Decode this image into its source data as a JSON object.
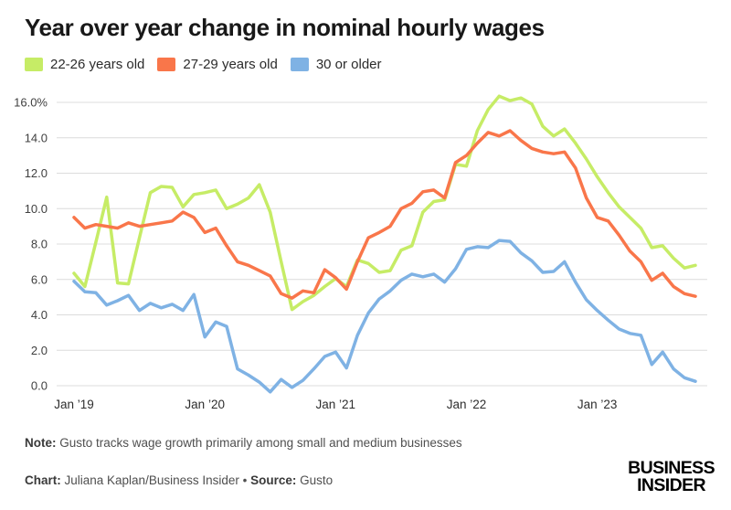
{
  "header": {
    "title": "Year over year change in nominal hourly wages"
  },
  "legend": [
    {
      "label": "22-26 years old",
      "color": "#c6ec66"
    },
    {
      "label": "27-29 years old",
      "color": "#f9764a"
    },
    {
      "label": "30 or older",
      "color": "#7fb2e4"
    }
  ],
  "chart_data": {
    "type": "line",
    "title": "Year over year change in nominal hourly wages",
    "xlabel": "",
    "ylabel": "",
    "ylim": [
      0,
      16
    ],
    "grid": "horizontal",
    "legend_position": "top-left",
    "gridline_color": "#dcdcdc",
    "axis_label_color": "#3f3f3f",
    "y_ticks": [
      {
        "value": 16,
        "label": "16.0%"
      },
      {
        "value": 14,
        "label": "14.0"
      },
      {
        "value": 12,
        "label": "12.0"
      },
      {
        "value": 10,
        "label": "10.0"
      },
      {
        "value": 8,
        "label": "8.0"
      },
      {
        "value": 6,
        "label": "6.0"
      },
      {
        "value": 4,
        "label": "4.0"
      },
      {
        "value": 2,
        "label": "2.0"
      },
      {
        "value": 0,
        "label": "0.0"
      }
    ],
    "x_ticks": [
      {
        "index": 0,
        "label": "Jan ’19"
      },
      {
        "index": 12,
        "label": "Jan ’20"
      },
      {
        "index": 24,
        "label": "Jan ’21"
      },
      {
        "index": 36,
        "label": "Jan ’22"
      },
      {
        "index": 48,
        "label": "Jan ’23"
      }
    ],
    "months": [
      "2019-01",
      "2019-02",
      "2019-03",
      "2019-04",
      "2019-05",
      "2019-06",
      "2019-07",
      "2019-08",
      "2019-09",
      "2019-10",
      "2019-11",
      "2019-12",
      "2020-01",
      "2020-02",
      "2020-03",
      "2020-04",
      "2020-05",
      "2020-06",
      "2020-07",
      "2020-08",
      "2020-09",
      "2020-10",
      "2020-11",
      "2020-12",
      "2021-01",
      "2021-02",
      "2021-03",
      "2021-04",
      "2021-05",
      "2021-06",
      "2021-07",
      "2021-08",
      "2021-09",
      "2021-10",
      "2021-11",
      "2021-12",
      "2022-01",
      "2022-02",
      "2022-03",
      "2022-04",
      "2022-05",
      "2022-06",
      "2022-07",
      "2022-08",
      "2022-09",
      "2022-10",
      "2022-11",
      "2022-12",
      "2023-01",
      "2023-02",
      "2023-03",
      "2023-04",
      "2023-05",
      "2023-06",
      "2023-07",
      "2023-08",
      "2023-09",
      "2023-10"
    ],
    "series": [
      {
        "id": "22-26",
        "name": "22-26 years old",
        "color": "#c6ec66",
        "values": [
          6.35,
          5.6,
          8.1,
          10.65,
          5.8,
          5.75,
          8.35,
          10.9,
          11.25,
          11.2,
          10.1,
          10.8,
          10.9,
          11.05,
          10.0,
          10.25,
          10.6,
          11.35,
          9.8,
          7.0,
          4.3,
          4.75,
          5.1,
          5.6,
          6.05,
          5.6,
          7.1,
          6.9,
          6.4,
          6.5,
          7.65,
          7.9,
          9.8,
          10.4,
          10.5,
          12.5,
          12.4,
          14.4,
          15.6,
          16.35,
          16.1,
          16.25,
          15.9,
          14.65,
          14.1,
          14.5,
          13.7,
          12.8,
          11.8,
          10.9,
          10.1,
          9.5,
          8.9,
          7.8,
          7.9,
          7.2,
          6.65,
          6.8
        ]
      },
      {
        "id": "30-older",
        "name": "30 or older",
        "color": "#7fb2e4",
        "values": [
          5.9,
          5.3,
          5.25,
          4.55,
          4.8,
          5.1,
          4.25,
          4.65,
          4.4,
          4.6,
          4.25,
          5.15,
          2.75,
          3.6,
          3.35,
          0.95,
          0.6,
          0.2,
          -0.35,
          0.35,
          -0.1,
          0.3,
          0.95,
          1.65,
          1.9,
          1.0,
          2.85,
          4.1,
          4.9,
          5.35,
          5.95,
          6.3,
          6.15,
          6.3,
          5.85,
          6.6,
          7.7,
          7.85,
          7.8,
          8.2,
          8.15,
          7.5,
          7.05,
          6.4,
          6.45,
          7.0,
          5.85,
          4.85,
          4.25,
          3.7,
          3.2,
          2.95,
          2.85,
          1.2,
          1.9,
          0.95,
          0.45,
          0.25
        ]
      },
      {
        "id": "27-29",
        "name": "27-29 years old",
        "color": "#f9764a",
        "values": [
          9.5,
          8.9,
          9.1,
          9.0,
          8.9,
          9.2,
          9.0,
          9.1,
          9.2,
          9.3,
          9.8,
          9.5,
          8.65,
          8.9,
          7.9,
          7.0,
          6.8,
          6.5,
          6.2,
          5.2,
          4.95,
          5.35,
          5.25,
          6.55,
          6.1,
          5.45,
          7.0,
          8.35,
          8.65,
          9.0,
          10.0,
          10.3,
          10.95,
          11.05,
          10.6,
          12.6,
          13.0,
          13.7,
          14.3,
          14.1,
          14.4,
          13.85,
          13.4,
          13.2,
          13.1,
          13.2,
          12.3,
          10.6,
          9.5,
          9.3,
          8.5,
          7.6,
          7.0,
          5.95,
          6.35,
          5.6,
          5.2,
          5.05
        ]
      }
    ]
  },
  "footer": {
    "note_label": "Note:",
    "note_text": " Gusto tracks wage growth primarily among small and medium businesses",
    "credit_label": "Chart:",
    "credit_text": " Juliana Kaplan/Business Insider • ",
    "source_label": "Source:",
    "source_text": " Gusto",
    "logo_line1": "BUSINESS",
    "logo_line2": "INSIDER"
  }
}
